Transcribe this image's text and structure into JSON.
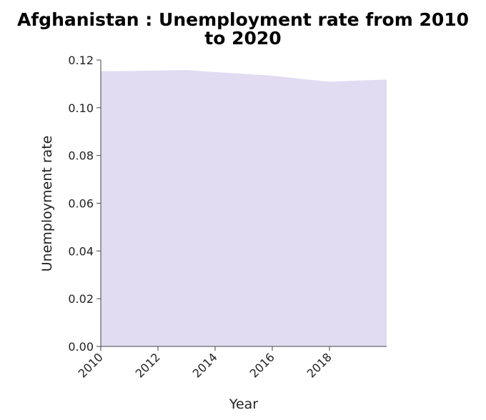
{
  "chart_data": {
    "type": "area",
    "title_line1": "Afghanistan : Unemployment rate from 2010",
    "title_line2": "to 2020",
    "xlabel": "Year",
    "ylabel": "Unemployment rate",
    "x": [
      2010,
      2011,
      2012,
      2013,
      2014,
      2015,
      2016,
      2017,
      2018,
      2019,
      2020
    ],
    "y": [
      0.1153,
      0.1154,
      0.1156,
      0.1158,
      0.1149,
      0.1142,
      0.1134,
      0.1121,
      0.1109,
      0.1114,
      0.1118
    ],
    "xlim": [
      2010,
      2020
    ],
    "ylim": [
      0,
      0.12
    ],
    "x_ticks": [
      "2010",
      "2012",
      "2014",
      "2016",
      "2018"
    ],
    "y_ticks": [
      "0.00",
      "0.02",
      "0.04",
      "0.06",
      "0.08",
      "0.10",
      "0.12"
    ],
    "fill_color": "#e1dcf2",
    "grid": false,
    "legend": "none"
  }
}
